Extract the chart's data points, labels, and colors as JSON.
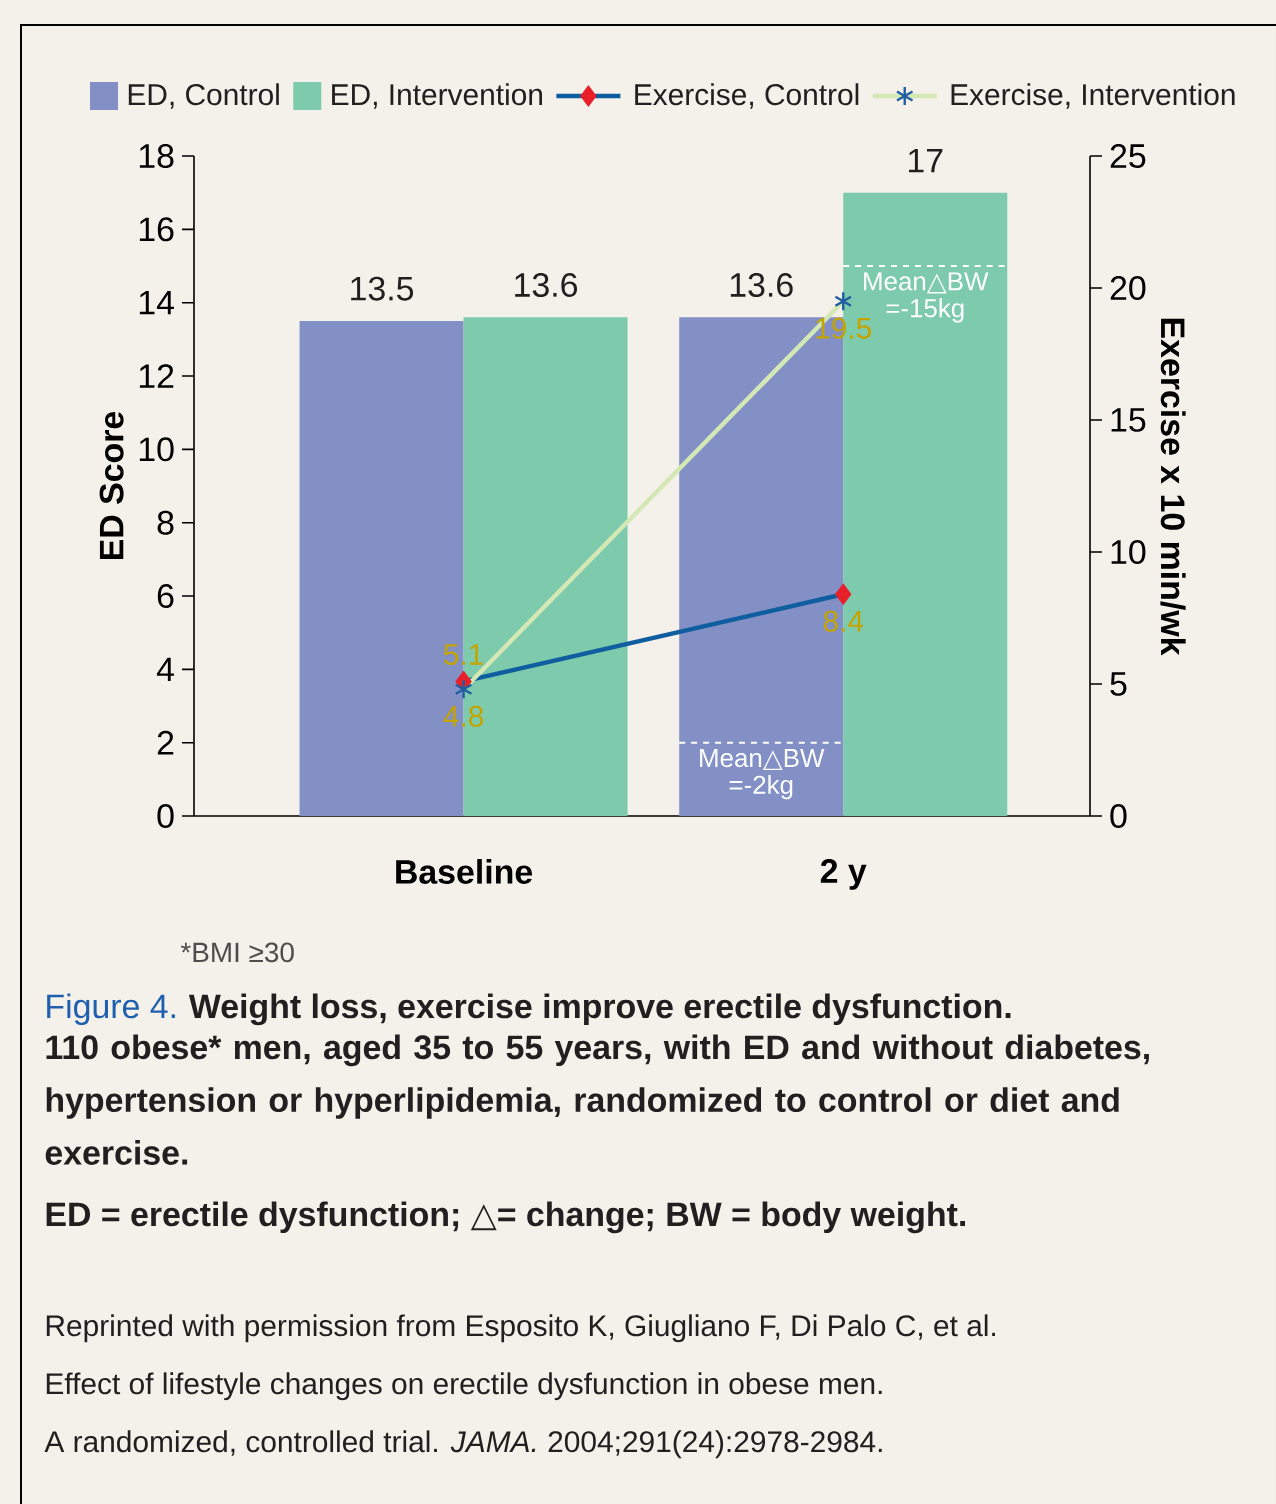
{
  "chart_data": {
    "type": "bar",
    "title": "Figure 4.",
    "subtitle": "Weight loss, exercise improve erectile dysfunction.",
    "xlabel": null,
    "ylabel": "ED Score",
    "y2label": "Exercise x 10 min/wk",
    "categories": [
      "Baseline",
      "2 y"
    ],
    "series": [
      {
        "name": "ED, Control",
        "color": "#8390c6",
        "values": [
          13.5,
          13.6
        ]
      },
      {
        "name": "ED, Intervention",
        "color": "#7ecaac",
        "values": [
          13.6,
          17
        ]
      },
      {
        "name": "Exercise, Control",
        "type": "line",
        "axis": "y2",
        "color": "#0f5fa0",
        "colors": [
          "#e8202a",
          "#e8202a"
        ],
        "marker": "diamond",
        "values": [
          5.1,
          8.4
        ]
      },
      {
        "name": "Exercise, Intervention",
        "type": "line",
        "axis": "y2",
        "color": "#d3e8b4",
        "colors": [
          "#1f5fa0",
          "#1f5fa0"
        ],
        "marker": "cross",
        "values": [
          4.8,
          19.5
        ]
      }
    ],
    "ylim": [
      0,
      18
    ],
    "yticks": [
      0,
      2,
      4,
      6,
      8,
      10,
      12,
      14,
      16,
      18
    ],
    "y2lim": [
      0,
      25
    ],
    "y2ticks": [
      0,
      5,
      10,
      15,
      20,
      25
    ],
    "data_labels": true,
    "legend": "top",
    "grid": false,
    "annotations": [
      {
        "text": "Mean△BW =-2kg",
        "x": "2 y",
        "y": 2
      },
      {
        "text": "Mean△BW =-15kg",
        "x": "2 y",
        "y": 15
      },
      "*BMI ≥30",
      "110 obese* men, aged 35 to 55 years, with ED and without diabetes, hypertension or hyperlipidemia, randomized to control or diet and exercise.",
      "ED = erectile dysfunction; △= change; BW = body weight.",
      "Reprinted with permission from Esposito K, Giugliano F, Di Palo C, et al.",
      "Effect of lifestyle changes on erectile dysfunction in obese men.",
      "A randomized, controlled trial. *JAMA.* 2004;291(24):2978-2984."
    ]
  }
}
